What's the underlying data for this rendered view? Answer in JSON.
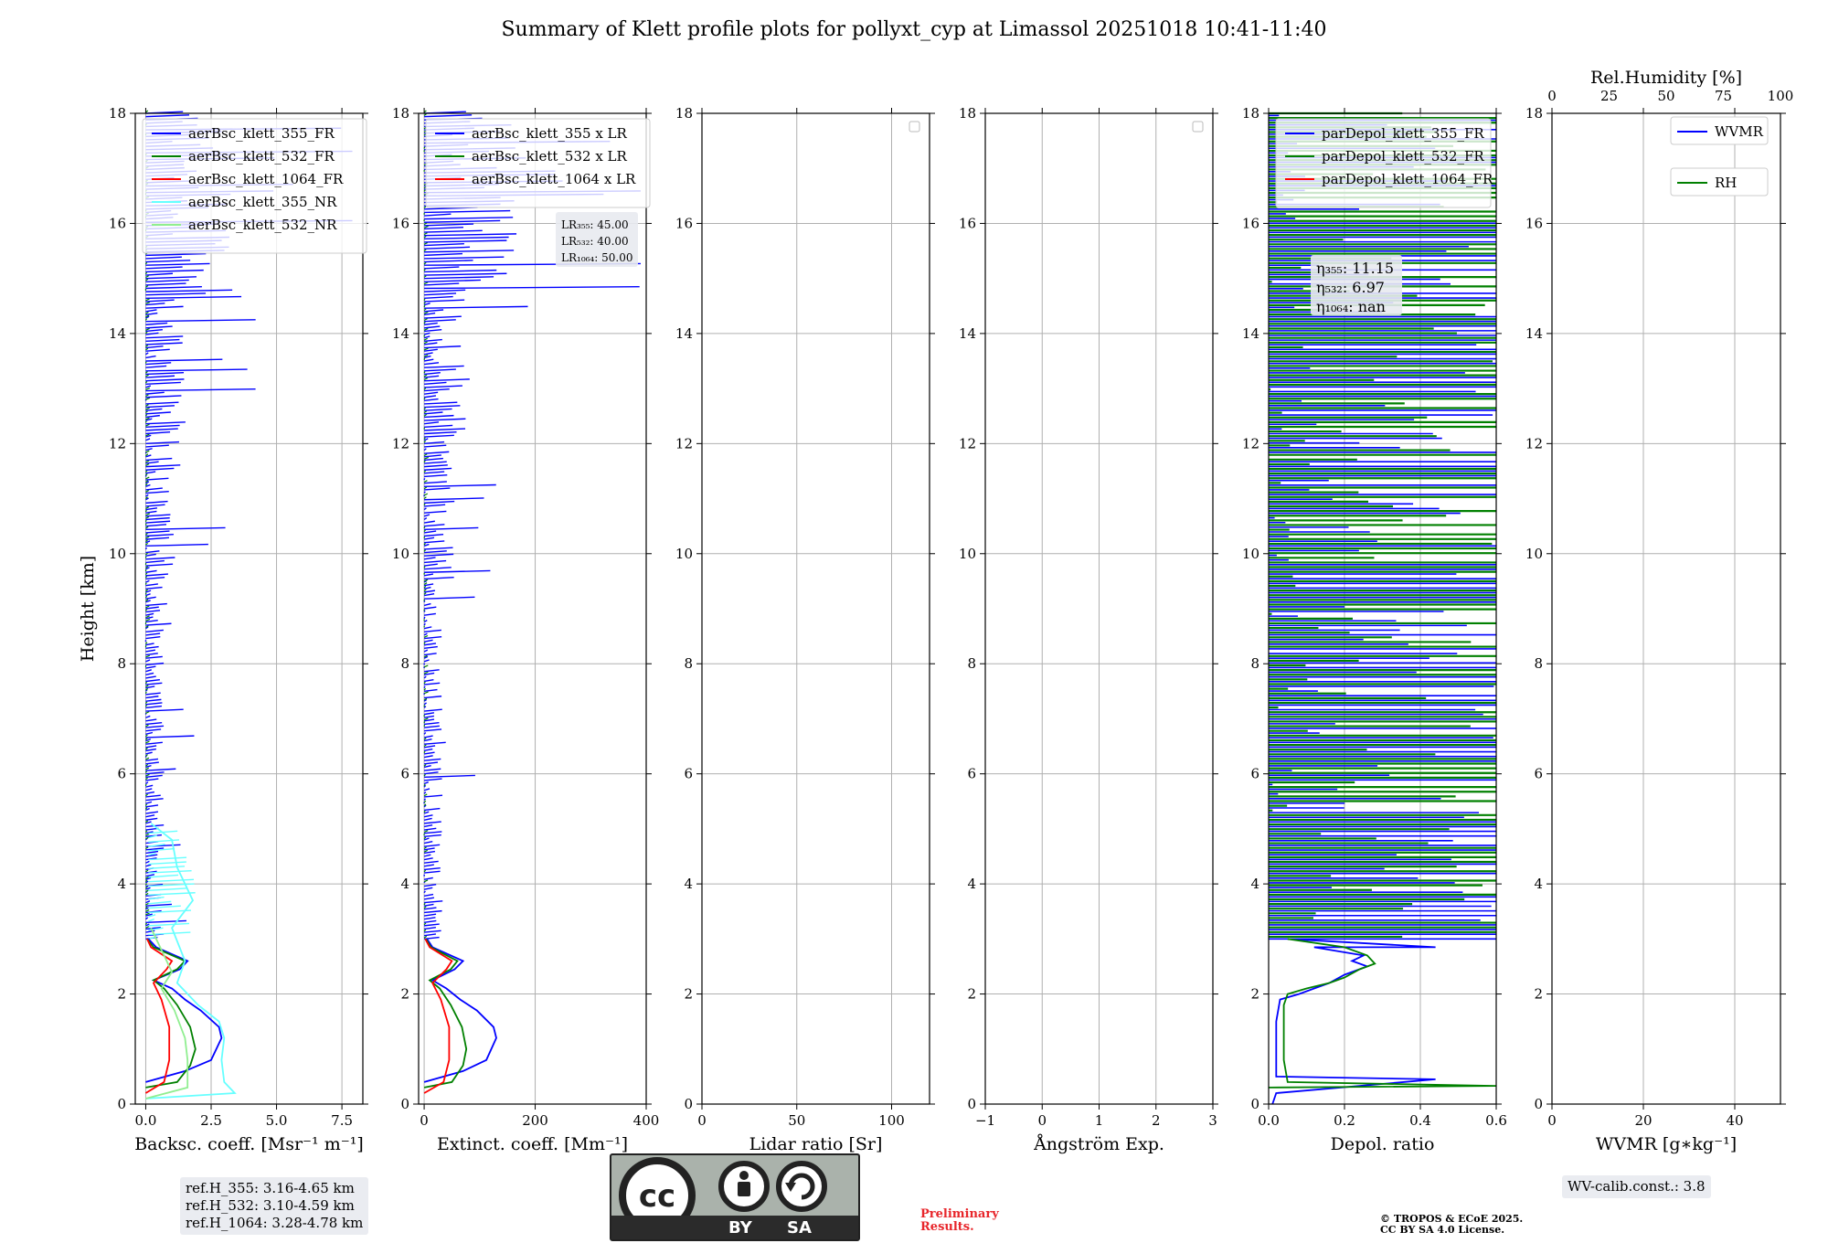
{
  "title": "Summary of Klett profile plots for pollyxt_cyp at Limassol 20251018 10:41-11:40",
  "colors": {
    "blue": "#0000ff",
    "green": "#008000",
    "red": "#ff0000",
    "cyan": "#66ffff",
    "lightgreen": "#90ee90",
    "grid": "#b0b0b0"
  },
  "chart_data": [
    {
      "type": "line",
      "panel": "backscatter",
      "xlabel": "Backsc. coeff. [Msr$^{-1}$ m$^{-1}$]",
      "xlabel_display": "Backsc. coeff. [Msr⁻¹ m⁻¹]",
      "ylabel": "Height [km]",
      "xlim": [
        -0.4,
        8.3
      ],
      "ylim": [
        0,
        18
      ],
      "xticks": [
        "0.0",
        "2.5",
        "5.0",
        "7.5"
      ],
      "xtick_values": [
        0,
        2.5,
        5,
        7.5
      ],
      "yticks": [
        "0",
        "2",
        "4",
        "6",
        "8",
        "10",
        "12",
        "14",
        "16",
        "18"
      ],
      "ytick_values": [
        0,
        2,
        4,
        6,
        8,
        10,
        12,
        14,
        16,
        18
      ],
      "legend": [
        "aerBsc_klett_355_FR",
        "aerBsc_klett_532_FR",
        "aerBsc_klett_1064_FR",
        "aerBsc_klett_355_NR",
        "aerBsc_klett_532_NR"
      ],
      "series": [
        {
          "name": "aerBsc_klett_355_FR",
          "color": "#0000ff",
          "noise": true,
          "points": [
            [
              0.0,
              0.4
            ],
            [
              1.5,
              0.6
            ],
            [
              2.5,
              0.8
            ],
            [
              2.9,
              1.2
            ],
            [
              2.8,
              1.4
            ],
            [
              2.1,
              1.7
            ],
            [
              1.5,
              1.9
            ],
            [
              1.0,
              2.1
            ],
            [
              0.3,
              2.25
            ],
            [
              1.3,
              2.45
            ],
            [
              1.6,
              2.6
            ],
            [
              0.4,
              2.85
            ],
            [
              0.1,
              3.0
            ]
          ]
        },
        {
          "name": "aerBsc_klett_532_FR",
          "color": "#008000",
          "noise": true,
          "points": [
            [
              0.0,
              0.3
            ],
            [
              1.2,
              0.4
            ],
            [
              1.7,
              0.7
            ],
            [
              1.9,
              1.0
            ],
            [
              1.7,
              1.4
            ],
            [
              1.2,
              1.8
            ],
            [
              0.7,
              2.1
            ],
            [
              0.3,
              2.25
            ],
            [
              1.2,
              2.45
            ],
            [
              1.5,
              2.6
            ],
            [
              0.3,
              2.85
            ],
            [
              0.05,
              3.0
            ]
          ]
        },
        {
          "name": "aerBsc_klett_1064_FR",
          "color": "#ff0000",
          "noise": true,
          "points": [
            [
              0.0,
              0.2
            ],
            [
              0.7,
              0.4
            ],
            [
              0.9,
              0.8
            ],
            [
              0.9,
              1.4
            ],
            [
              0.6,
              1.9
            ],
            [
              0.3,
              2.2
            ],
            [
              0.8,
              2.45
            ],
            [
              1.0,
              2.6
            ],
            [
              0.2,
              2.85
            ],
            [
              0.05,
              3.0
            ]
          ]
        },
        {
          "name": "aerBsc_klett_355_NR",
          "color": "#66ffff",
          "noise": true,
          "points": [
            [
              0.0,
              0.1
            ],
            [
              3.4,
              0.2
            ],
            [
              3.0,
              0.4
            ],
            [
              2.9,
              0.8
            ],
            [
              3.0,
              1.2
            ],
            [
              2.8,
              1.5
            ],
            [
              2.0,
              1.8
            ],
            [
              1.2,
              2.2
            ],
            [
              1.5,
              2.6
            ],
            [
              1.0,
              3.2
            ],
            [
              1.8,
              3.7
            ],
            [
              1.2,
              4.3
            ],
            [
              1.0,
              4.8
            ],
            [
              0.2,
              5.1
            ]
          ]
        },
        {
          "name": "aerBsc_klett_532_NR",
          "color": "#90ee90",
          "noise": true,
          "points": [
            [
              0.0,
              0.1
            ],
            [
              1.6,
              0.3
            ],
            [
              1.6,
              0.8
            ],
            [
              1.5,
              1.2
            ],
            [
              1.1,
              1.7
            ],
            [
              0.6,
              2.1
            ],
            [
              1.0,
              2.4
            ],
            [
              0.5,
              2.9
            ],
            [
              0.2,
              3.2
            ]
          ]
        }
      ],
      "ref_heights": [
        "ref.H_355: 3.16-4.65 km",
        "ref.H_532: 3.10-4.59 km",
        "ref.H_1064: 3.28-4.78 km"
      ]
    },
    {
      "type": "line",
      "panel": "extinction",
      "xlabel": "Extinct. coeff. [Mm$^{-1}$]",
      "xlabel_display": "Extinct. coeff. [Mm⁻¹]",
      "xlim": [
        -10,
        400
      ],
      "ylim": [
        0,
        18
      ],
      "xticks": [
        "0",
        "200",
        "400"
      ],
      "xtick_values": [
        0,
        200,
        400
      ],
      "legend": [
        "aerBsc_klett_355 x LR",
        "aerBsc_klett_532 x LR",
        "aerBsc_klett_1064 x LR"
      ],
      "series": [
        {
          "name": "aerBsc_klett_355 x LR",
          "color": "#0000ff",
          "noise": true,
          "points": [
            [
              0,
              0.4
            ],
            [
              70,
              0.6
            ],
            [
              112,
              0.8
            ],
            [
              130,
              1.2
            ],
            [
              125,
              1.4
            ],
            [
              95,
              1.7
            ],
            [
              65,
              1.9
            ],
            [
              40,
              2.1
            ],
            [
              15,
              2.25
            ],
            [
              55,
              2.45
            ],
            [
              70,
              2.6
            ],
            [
              15,
              2.85
            ],
            [
              5,
              3.0
            ]
          ]
        },
        {
          "name": "aerBsc_klett_532 x LR",
          "color": "#008000",
          "noise": true,
          "points": [
            [
              0,
              0.3
            ],
            [
              50,
              0.4
            ],
            [
              70,
              0.7
            ],
            [
              76,
              1.0
            ],
            [
              68,
              1.4
            ],
            [
              48,
              1.8
            ],
            [
              28,
              2.1
            ],
            [
              10,
              2.25
            ],
            [
              48,
              2.45
            ],
            [
              60,
              2.6
            ],
            [
              12,
              2.85
            ],
            [
              3,
              3.0
            ]
          ]
        },
        {
          "name": "aerBsc_klett_1064 x LR",
          "color": "#ff0000",
          "noise": true,
          "points": [
            [
              0,
              0.2
            ],
            [
              35,
              0.4
            ],
            [
              45,
              0.8
            ],
            [
              45,
              1.4
            ],
            [
              30,
              1.9
            ],
            [
              15,
              2.2
            ],
            [
              40,
              2.45
            ],
            [
              50,
              2.6
            ],
            [
              10,
              2.85
            ],
            [
              2,
              3.0
            ]
          ]
        }
      ],
      "lidar_ratios": [
        "LR₃₅₅: 45.00",
        "LR₅₃₂: 40.00",
        "LR₁₀₆₄: 50.00"
      ]
    },
    {
      "type": "line",
      "panel": "lidar-ratio",
      "xlabel": "Lidar ratio [Sr]",
      "xlim": [
        0,
        120
      ],
      "ylim": [
        0,
        18
      ],
      "xticks": [
        "0",
        "50",
        "100"
      ],
      "xtick_values": [
        0,
        50,
        100
      ],
      "series": []
    },
    {
      "type": "line",
      "panel": "angstrom",
      "xlabel": "Ångström Exp.",
      "xlim": [
        -1,
        3
      ],
      "ylim": [
        0,
        18
      ],
      "xticks": [
        "−1",
        "0",
        "1",
        "2",
        "3"
      ],
      "xtick_values": [
        -1,
        0,
        1,
        2,
        3
      ],
      "series": []
    },
    {
      "type": "line",
      "panel": "depolarization",
      "xlabel": "Depol. ratio",
      "xlim": [
        0,
        0.6
      ],
      "ylim": [
        0,
        18
      ],
      "xticks": [
        "0.0",
        "0.2",
        "0.4",
        "0.6"
      ],
      "xtick_values": [
        0,
        0.2,
        0.4,
        0.6
      ],
      "legend": [
        "parDepol_klett_355_FR",
        "parDepol_klett_532_FR",
        "parDepol_klett_1064_FR"
      ],
      "series": [
        {
          "name": "parDepol_klett_355_FR",
          "color": "#0000ff",
          "points": [
            [
              0.01,
              0.0
            ],
            [
              0.02,
              0.2
            ],
            [
              0.44,
              0.45
            ],
            [
              0.02,
              0.5
            ],
            [
              0.02,
              1.0
            ],
            [
              0.02,
              1.5
            ],
            [
              0.03,
              1.9
            ],
            [
              0.08,
              2.0
            ],
            [
              0.12,
              2.1
            ],
            [
              0.16,
              2.2
            ],
            [
              0.2,
              2.35
            ],
            [
              0.26,
              2.5
            ],
            [
              0.22,
              2.6
            ],
            [
              0.25,
              2.7
            ],
            [
              0.12,
              2.85
            ],
            [
              0.44,
              2.85
            ],
            [
              0.05,
              3.0
            ]
          ]
        },
        {
          "name": "parDepol_klett_532_FR",
          "color": "#008000",
          "points": [
            [
              0.0,
              0.3
            ],
            [
              0.6,
              0.33
            ],
            [
              0.05,
              0.4
            ],
            [
              0.04,
              0.8
            ],
            [
              0.04,
              1.3
            ],
            [
              0.04,
              1.8
            ],
            [
              0.05,
              2.0
            ],
            [
              0.1,
              2.1
            ],
            [
              0.16,
              2.2
            ],
            [
              0.2,
              2.3
            ],
            [
              0.24,
              2.45
            ],
            [
              0.28,
              2.55
            ],
            [
              0.26,
              2.7
            ],
            [
              0.2,
              2.85
            ],
            [
              0.05,
              3.0
            ]
          ]
        },
        {
          "name": "parDepol_klett_1064_FR",
          "color": "#ff0000",
          "points": []
        }
      ],
      "angstrom_values": [
        "η₃₅₅: 11.15",
        "η₅₃₂: 6.97",
        "η₁₀₆₄: nan"
      ]
    },
    {
      "type": "line",
      "panel": "water-vapor",
      "xlabel": "WVMR [$g*kg^{-1}$]",
      "xlabel_display": "WVMR [g∗kg⁻¹]",
      "top_label": "Rel.Humidity [%]",
      "xlim": [
        0,
        50
      ],
      "ylim": [
        0,
        18
      ],
      "xticks": [
        "0",
        "20",
        "40"
      ],
      "xtick_values": [
        0,
        20,
        40
      ],
      "top_ticks": [
        "0",
        "25",
        "50",
        "75",
        "100"
      ],
      "top_tick_values": [
        0,
        25,
        50,
        75,
        100
      ],
      "top_xlim": [
        0,
        100
      ],
      "legend": [
        "WVMR",
        "RH"
      ],
      "series": [],
      "calibration": "WV-calib.const.: 3.8"
    }
  ],
  "footer": {
    "license_left": "BY",
    "license_right": "SA",
    "cc_text": "cc",
    "preliminary": [
      "Preliminary",
      "Results."
    ],
    "copyright": [
      "© TROPOS & ECoE 2025.",
      "CC BY SA 4.0 License."
    ]
  }
}
